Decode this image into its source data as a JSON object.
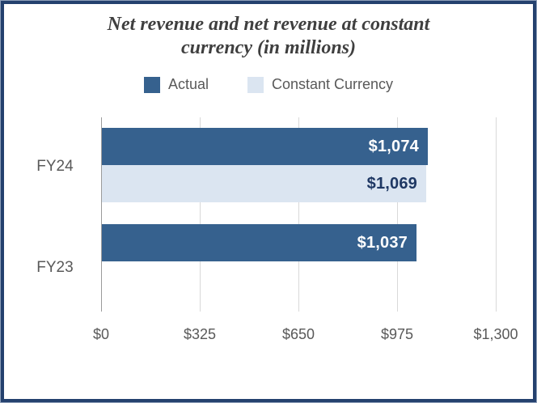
{
  "chart_data": {
    "type": "bar",
    "orientation": "horizontal",
    "title": "Net revenue and net revenue at constant currency (in millions)",
    "title_lines": [
      "Net revenue and net revenue at constant",
      "currency (in millions)"
    ],
    "categories": [
      "FY24",
      "FY23"
    ],
    "series": [
      {
        "name": "Actual",
        "color": "#36618E",
        "values": [
          1074,
          1037
        ],
        "labels": [
          "$1,074",
          "$1,037"
        ]
      },
      {
        "name": "Constant Currency",
        "color": "#DBE5F1",
        "values": [
          1069,
          null
        ],
        "labels": [
          "$1,069",
          null
        ]
      }
    ],
    "xlim": [
      0,
      1300
    ],
    "x_ticks": [
      0,
      325,
      650,
      975,
      1300
    ],
    "x_tick_labels": [
      "$0",
      "$325",
      "$650",
      "$975",
      "$1,300"
    ],
    "grid": true,
    "legend_position": "top",
    "colors": {
      "actual_bar": "#36618E",
      "constant_currency_bar": "#DBE5F1",
      "value_label_on_dark": "#FFFFFF",
      "value_label_on_light": "#1F3864",
      "axis_text": "#595959",
      "title_text": "#3F3F3F",
      "gridline": "#D9D9D9",
      "axis_line": "#9B9B9B",
      "frame_border": "#24416E"
    }
  }
}
